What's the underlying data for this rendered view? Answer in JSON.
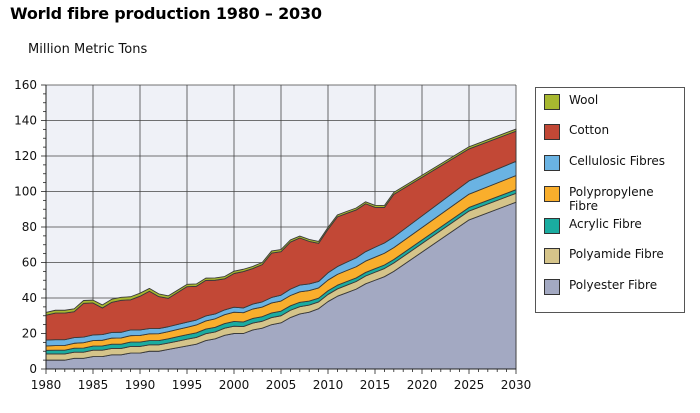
{
  "page": {
    "title": "World fibre production 1980 – 2030",
    "y_unit": "Million Metric Tons"
  },
  "chart_data": {
    "type": "area",
    "stacked": true,
    "title": "World fibre production 1980 – 2030",
    "ylabel": "Million Metric Tons",
    "xlabel": "",
    "xlim": [
      1980,
      2030
    ],
    "ylim": [
      0,
      160
    ],
    "x_ticks": [
      1980,
      1985,
      1990,
      1995,
      2000,
      2005,
      2010,
      2015,
      2020,
      2025,
      2030
    ],
    "y_ticks": [
      0,
      20,
      40,
      60,
      80,
      100,
      120,
      140,
      160
    ],
    "grid": true,
    "legend_position": "right",
    "x": [
      1980,
      1981,
      1982,
      1983,
      1984,
      1985,
      1986,
      1987,
      1988,
      1989,
      1990,
      1991,
      1992,
      1993,
      1994,
      1995,
      1996,
      1997,
      1998,
      1999,
      2000,
      2001,
      2002,
      2003,
      2004,
      2005,
      2006,
      2007,
      2008,
      2009,
      2010,
      2011,
      2012,
      2013,
      2014,
      2015,
      2016,
      2017,
      2025,
      2030
    ],
    "series": [
      {
        "name": "Polyester Fibre",
        "color": "#a3a9c2",
        "values": [
          5,
          5,
          5,
          6,
          6,
          7,
          7,
          8,
          8,
          9,
          9,
          10,
          10,
          11,
          12,
          13,
          14,
          16,
          17,
          19,
          20,
          20,
          22,
          23,
          25,
          26,
          29,
          31,
          32,
          34,
          38,
          41,
          43,
          45,
          48,
          50,
          52,
          55,
          84,
          94
        ]
      },
      {
        "name": "Polyamide Fibre",
        "color": "#d5c48a",
        "values": [
          3.5,
          3.5,
          3.5,
          3.5,
          3.5,
          3.6,
          3.6,
          3.6,
          3.6,
          3.7,
          3.7,
          3.6,
          3.6,
          3.6,
          3.7,
          3.8,
          3.8,
          3.9,
          3.9,
          4.0,
          4.1,
          3.9,
          3.9,
          3.9,
          4.0,
          4.0,
          4.1,
          4.1,
          4.0,
          3.8,
          4.0,
          4.1,
          4.2,
          4.3,
          4.4,
          4.5,
          4.6,
          4.7,
          5.0,
          5.0
        ]
      },
      {
        "name": "Acrylic Fibre",
        "color": "#1aaca0",
        "values": [
          2.0,
          2.1,
          2.1,
          2.2,
          2.3,
          2.3,
          2.4,
          2.4,
          2.4,
          2.5,
          2.5,
          2.4,
          2.4,
          2.4,
          2.5,
          2.5,
          2.6,
          2.6,
          2.6,
          2.6,
          2.7,
          2.6,
          2.6,
          2.6,
          2.6,
          2.6,
          2.5,
          2.5,
          2.3,
          2.1,
          2.1,
          2.1,
          2.1,
          2.0,
          2.0,
          2.0,
          2.0,
          2.0,
          2.0,
          2.0
        ]
      },
      {
        "name": "Polypropylene Fibre",
        "color": "#f9ae2c",
        "values": [
          2.5,
          2.6,
          2.7,
          2.8,
          3.0,
          3.1,
          3.2,
          3.4,
          3.5,
          3.6,
          3.7,
          3.8,
          3.9,
          4.0,
          4.1,
          4.2,
          4.4,
          4.6,
          4.8,
          5.0,
          5.2,
          5.2,
          5.3,
          5.4,
          5.6,
          5.7,
          5.8,
          5.9,
          5.9,
          5.8,
          6.0,
          6.1,
          6.2,
          6.3,
          6.4,
          6.5,
          6.6,
          6.7,
          7.5,
          8.0
        ]
      },
      {
        "name": "Cellulosic Fibres",
        "color": "#6ab3e3",
        "values": [
          3.3,
          3.3,
          3.2,
          3.2,
          3.2,
          3.2,
          3.2,
          3.2,
          3.2,
          3.2,
          3.1,
          3.0,
          2.9,
          2.8,
          2.8,
          2.9,
          2.8,
          2.8,
          2.7,
          2.7,
          2.8,
          2.7,
          2.8,
          2.9,
          3.1,
          3.3,
          3.6,
          3.8,
          3.7,
          3.6,
          4.1,
          4.4,
          4.7,
          5.0,
          5.3,
          5.6,
          5.8,
          6.0,
          7.5,
          8.0
        ]
      },
      {
        "name": "Cotton",
        "color": "#c24836",
        "values": [
          14.0,
          15.0,
          15.0,
          14.6,
          19.0,
          18.0,
          15.0,
          17.0,
          18.0,
          17.0,
          19.0,
          21.0,
          18.0,
          16.0,
          18.0,
          20.0,
          19.0,
          20.0,
          19.0,
          17.5,
          19.0,
          20.5,
          20.0,
          21.0,
          25.0,
          24.5,
          26.5,
          26.5,
          24.0,
          21.5,
          24.5,
          28.0,
          27.5,
          27.0,
          27.0,
          22.5,
          20.0,
          24.0,
          18.0,
          17.0
        ]
      },
      {
        "name": "Wool",
        "color": "#a8b830",
        "values": [
          1.6,
          1.6,
          1.6,
          1.6,
          1.6,
          1.6,
          1.7,
          1.7,
          1.7,
          1.7,
          1.7,
          1.6,
          1.5,
          1.4,
          1.3,
          1.3,
          1.3,
          1.3,
          1.3,
          1.3,
          1.3,
          1.3,
          1.2,
          1.2,
          1.2,
          1.2,
          1.2,
          1.1,
          1.1,
          1.1,
          1.1,
          1.1,
          1.1,
          1.1,
          1.1,
          1.1,
          1.1,
          1.1,
          1.2,
          1.2
        ]
      }
    ]
  }
}
